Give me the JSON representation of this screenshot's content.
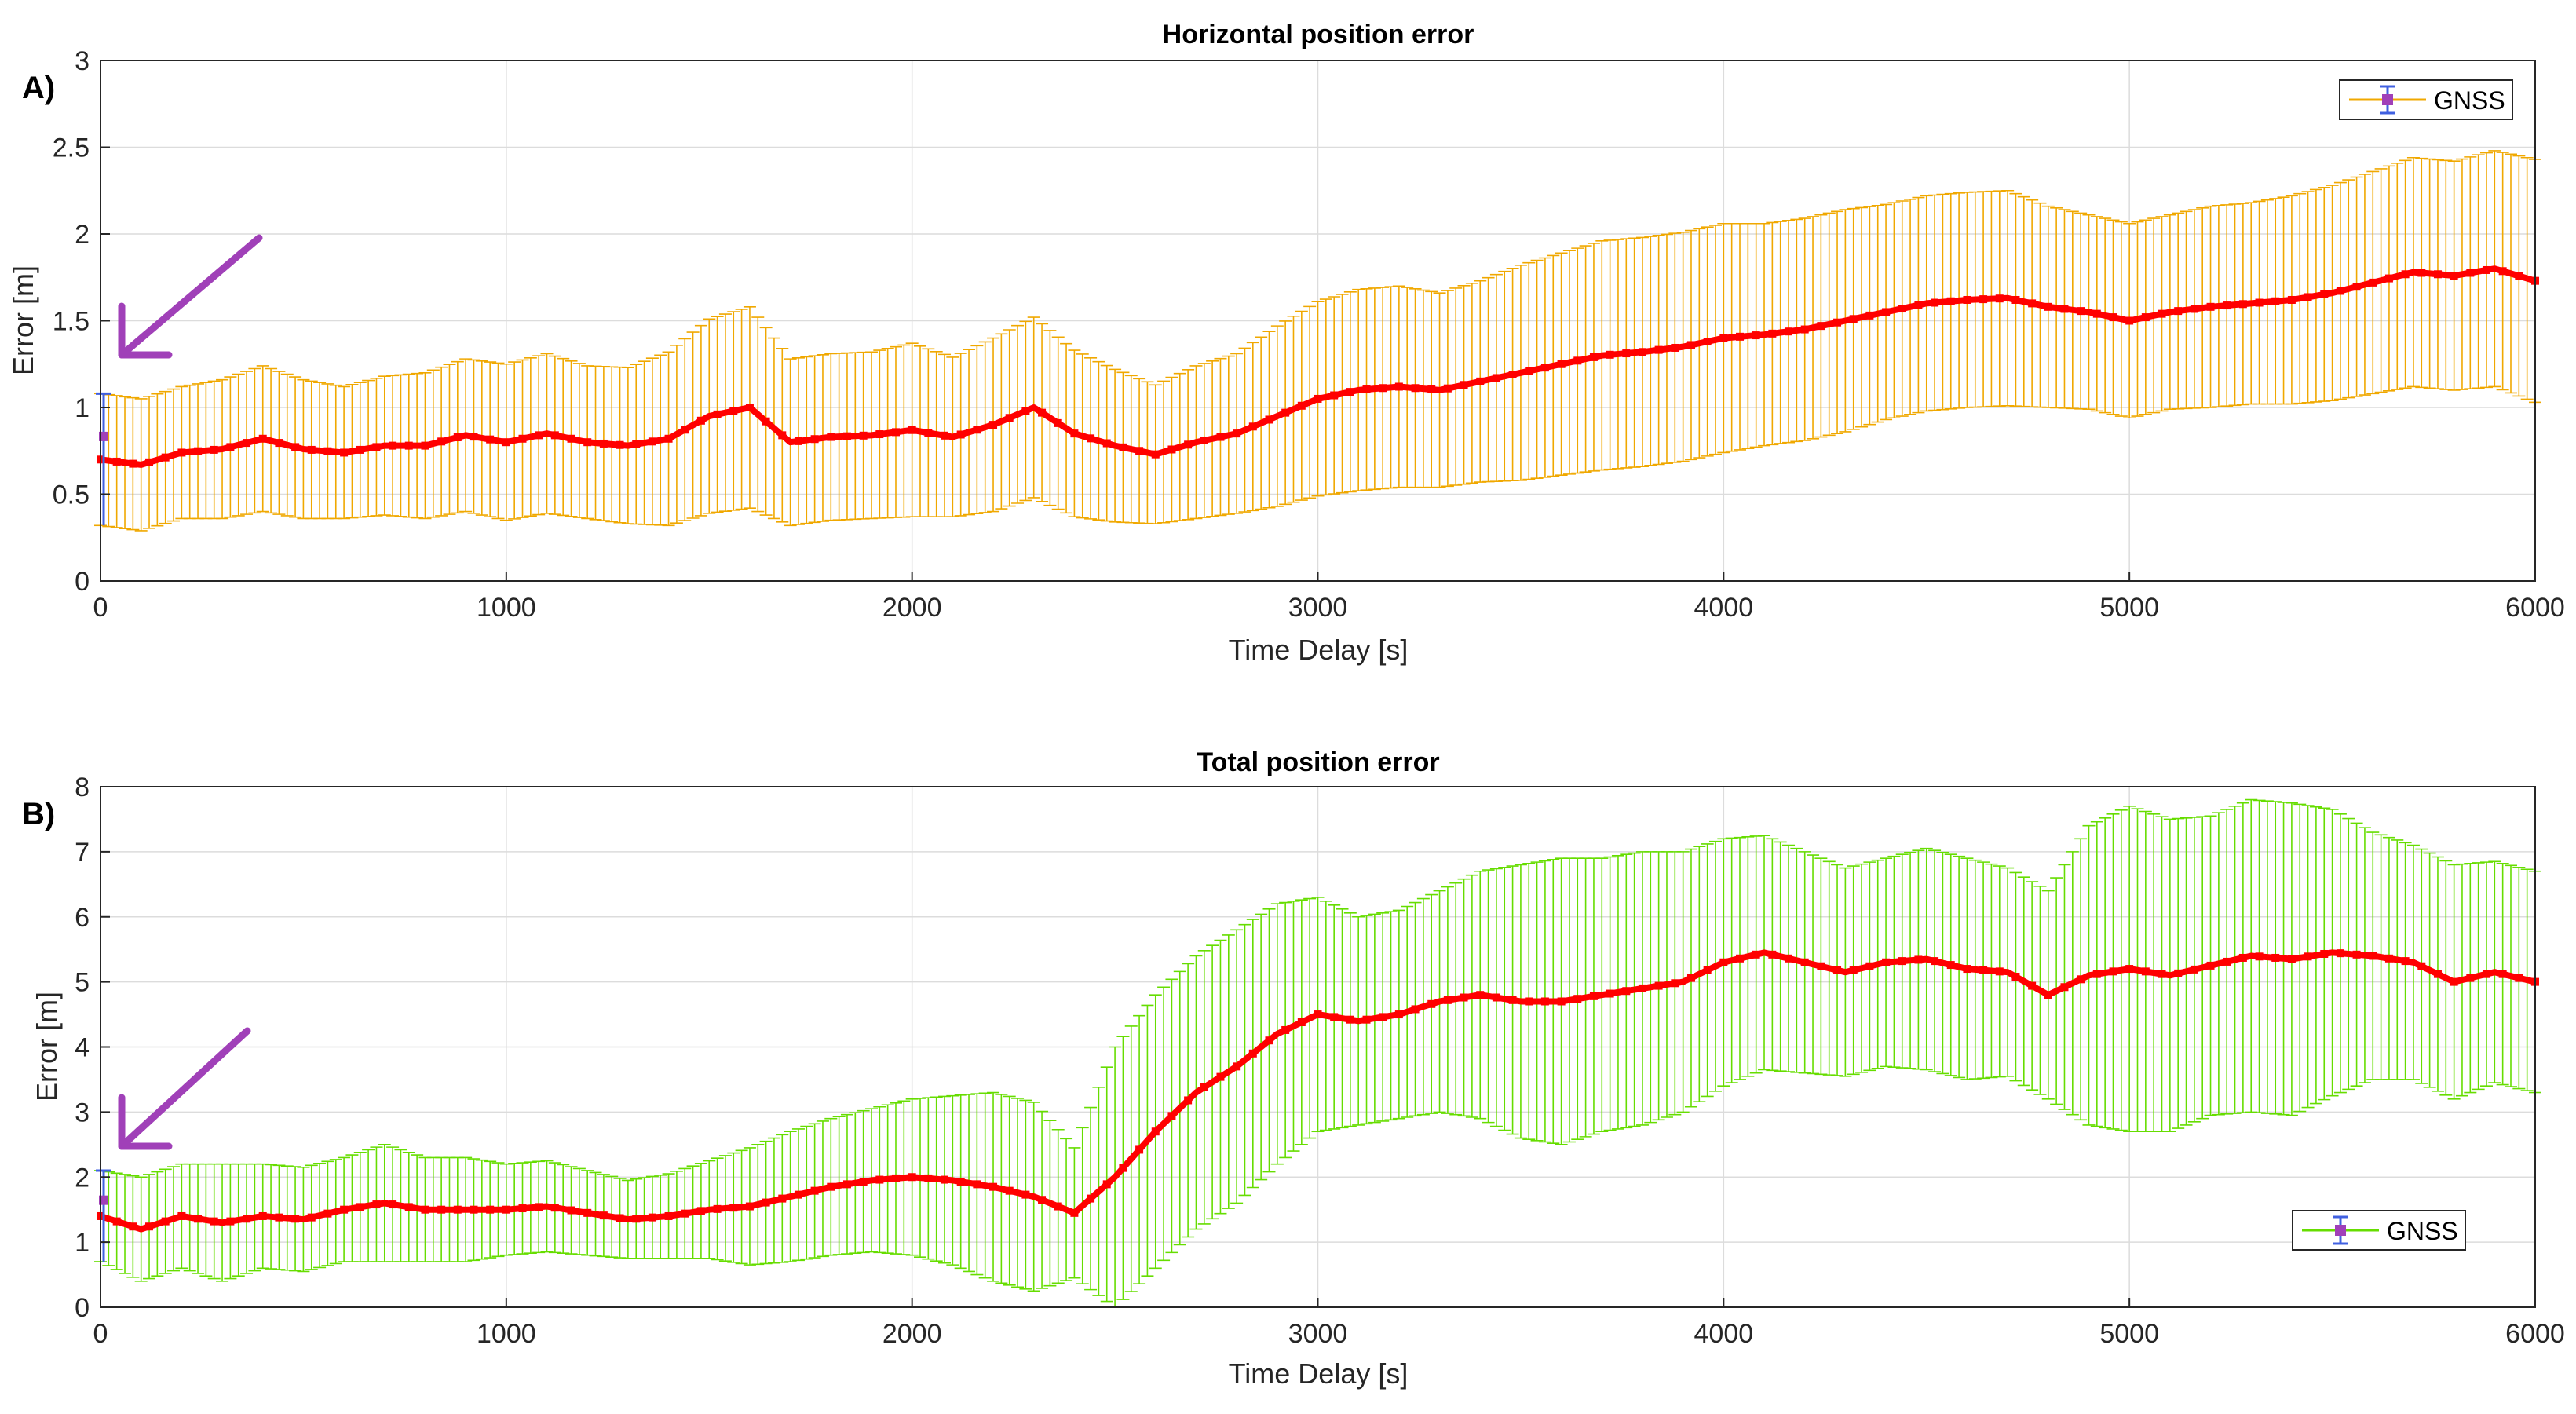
{
  "chart_data": [
    {
      "type": "line",
      "panel_label": "A)",
      "title": "Horizontal position error",
      "xlabel": "Time Delay [s]",
      "ylabel": "Error [m]",
      "xlim": [
        0,
        6000
      ],
      "ylim": [
        0,
        3
      ],
      "xticks": [
        0,
        1000,
        2000,
        3000,
        4000,
        5000,
        6000
      ],
      "yticks": [
        0,
        0.5,
        1,
        1.5,
        2,
        2.5,
        3
      ],
      "ytick_labels": [
        "0",
        "0.5",
        "1",
        "1.5",
        "2",
        "2.5",
        "3"
      ],
      "grid": true,
      "legend": {
        "entries": [
          "GNSS"
        ],
        "position": "top-right"
      },
      "series": [
        {
          "name": "GNSS",
          "line_color": "#ff0000",
          "errorbar_color": "#f0a800",
          "x": [
            0,
            100,
            200,
            300,
            400,
            500,
            600,
            700,
            800,
            900,
            1000,
            1100,
            1200,
            1300,
            1400,
            1500,
            1600,
            1700,
            1800,
            1900,
            2000,
            2100,
            2200,
            2300,
            2400,
            2500,
            2600,
            2700,
            2800,
            2900,
            3000,
            3100,
            3200,
            3300,
            3400,
            3500,
            3600,
            3700,
            3800,
            3900,
            4000,
            4100,
            4200,
            4300,
            4400,
            4500,
            4600,
            4700,
            4800,
            4900,
            5000,
            5100,
            5200,
            5300,
            5400,
            5500,
            5600,
            5700,
            5800,
            5900,
            6000
          ],
          "y": [
            0.7,
            0.67,
            0.74,
            0.76,
            0.82,
            0.76,
            0.74,
            0.78,
            0.78,
            0.84,
            0.8,
            0.85,
            0.8,
            0.78,
            0.82,
            0.95,
            1.0,
            0.8,
            0.83,
            0.84,
            0.87,
            0.83,
            0.9,
            1.0,
            0.85,
            0.78,
            0.73,
            0.8,
            0.85,
            0.95,
            1.05,
            1.1,
            1.12,
            1.1,
            1.15,
            1.2,
            1.25,
            1.3,
            1.32,
            1.35,
            1.4,
            1.42,
            1.45,
            1.5,
            1.55,
            1.6,
            1.62,
            1.63,
            1.58,
            1.55,
            1.5,
            1.55,
            1.58,
            1.6,
            1.62,
            1.66,
            1.72,
            1.78,
            1.76,
            1.8,
            1.73
          ],
          "err": [
            0.38,
            0.38,
            0.38,
            0.4,
            0.42,
            0.4,
            0.38,
            0.4,
            0.42,
            0.44,
            0.45,
            0.46,
            0.44,
            0.45,
            0.5,
            0.56,
            0.58,
            0.48,
            0.48,
            0.48,
            0.5,
            0.46,
            0.5,
            0.52,
            0.48,
            0.44,
            0.4,
            0.44,
            0.46,
            0.52,
            0.56,
            0.58,
            0.58,
            0.56,
            0.58,
            0.62,
            0.64,
            0.66,
            0.66,
            0.66,
            0.66,
            0.64,
            0.64,
            0.64,
            0.62,
            0.62,
            0.62,
            0.62,
            0.58,
            0.56,
            0.56,
            0.56,
            0.58,
            0.58,
            0.6,
            0.62,
            0.64,
            0.66,
            0.66,
            0.68,
            0.7
          ]
        }
      ],
      "annotations": [
        {
          "type": "arrow",
          "color": "#a040b8",
          "points_to": "error bar at t = 0"
        }
      ]
    },
    {
      "type": "line",
      "panel_label": "B)",
      "title": "Total position error",
      "xlabel": "Time Delay [s]",
      "ylabel": "Error [m]",
      "xlim": [
        0,
        6000
      ],
      "ylim": [
        0,
        8
      ],
      "xticks": [
        0,
        1000,
        2000,
        3000,
        4000,
        5000,
        6000
      ],
      "yticks": [
        0,
        1,
        2,
        3,
        4,
        5,
        6,
        7,
        8
      ],
      "ytick_labels": [
        "0",
        "1",
        "2",
        "3",
        "4",
        "5",
        "6",
        "7",
        "8"
      ],
      "grid": true,
      "legend": {
        "entries": [
          "GNSS"
        ],
        "position": "bottom-right"
      },
      "series": [
        {
          "name": "GNSS",
          "line_color": "#ff0000",
          "errorbar_color": "#66dd00",
          "x": [
            0,
            100,
            200,
            300,
            400,
            500,
            600,
            700,
            800,
            900,
            1000,
            1100,
            1200,
            1300,
            1400,
            1500,
            1600,
            1700,
            1800,
            1900,
            2000,
            2100,
            2200,
            2300,
            2400,
            2500,
            2600,
            2700,
            2800,
            2900,
            3000,
            3100,
            3200,
            3300,
            3400,
            3500,
            3600,
            3700,
            3800,
            3900,
            4000,
            4100,
            4200,
            4300,
            4400,
            4500,
            4600,
            4700,
            4800,
            4900,
            5000,
            5100,
            5200,
            5300,
            5400,
            5500,
            5600,
            5700,
            5800,
            5900,
            6000
          ],
          "y": [
            1.4,
            1.2,
            1.4,
            1.3,
            1.4,
            1.35,
            1.5,
            1.6,
            1.5,
            1.5,
            1.5,
            1.55,
            1.45,
            1.35,
            1.4,
            1.5,
            1.55,
            1.7,
            1.85,
            1.95,
            2.0,
            1.95,
            1.85,
            1.7,
            1.45,
            2.0,
            2.7,
            3.3,
            3.7,
            4.2,
            4.5,
            4.4,
            4.5,
            4.7,
            4.8,
            4.7,
            4.7,
            4.8,
            4.9,
            5.0,
            5.3,
            5.45,
            5.3,
            5.15,
            5.3,
            5.35,
            5.2,
            5.15,
            4.8,
            5.1,
            5.2,
            5.1,
            5.25,
            5.4,
            5.35,
            5.45,
            5.4,
            5.3,
            5.0,
            5.15,
            5.0
          ],
          "err": [
            0.7,
            0.8,
            0.8,
            0.9,
            0.8,
            0.8,
            0.8,
            0.9,
            0.8,
            0.8,
            0.7,
            0.7,
            0.65,
            0.6,
            0.65,
            0.75,
            0.9,
            1.0,
            1.05,
            1.1,
            1.2,
            1.3,
            1.45,
            1.45,
            1.0,
            2.0,
            2.1,
            2.1,
            2.1,
            2.0,
            1.8,
            1.6,
            1.6,
            1.7,
            1.9,
            2.1,
            2.2,
            2.1,
            2.1,
            2.0,
            1.9,
            1.8,
            1.7,
            1.6,
            1.6,
            1.7,
            1.7,
            1.6,
            1.6,
            2.3,
            2.5,
            2.4,
            2.3,
            2.4,
            2.4,
            2.2,
            1.9,
            1.8,
            1.8,
            1.7,
            1.7
          ]
        }
      ],
      "annotations": [
        {
          "type": "arrow",
          "color": "#a040b8",
          "points_to": "error bar at t = 0"
        }
      ]
    }
  ]
}
